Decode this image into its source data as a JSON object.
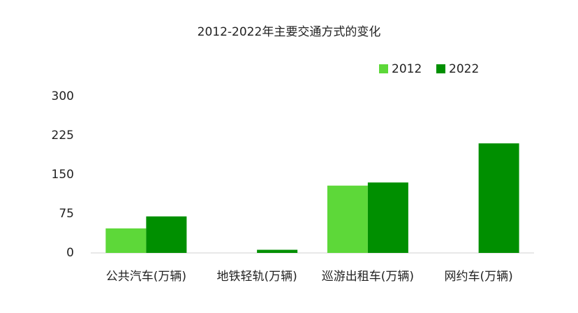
{
  "chart_data": {
    "type": "bar",
    "title": "2012-2022年主要交通方式的变化",
    "categories": [
      "公共汽车(万辆)",
      "地铁轻轨(万辆)",
      "巡游出租车(万辆)",
      "网约车(万辆)"
    ],
    "series": [
      {
        "name": "2012",
        "color": "#5dd839",
        "values": [
          47,
          null,
          129,
          null
        ]
      },
      {
        "name": "2022",
        "color": "#008f00",
        "values": [
          70,
          6,
          135,
          210
        ]
      }
    ],
    "ylim": [
      0,
      300
    ],
    "yticks": [
      0,
      75,
      150,
      225,
      300
    ],
    "grid": false,
    "legend": "top-right"
  }
}
